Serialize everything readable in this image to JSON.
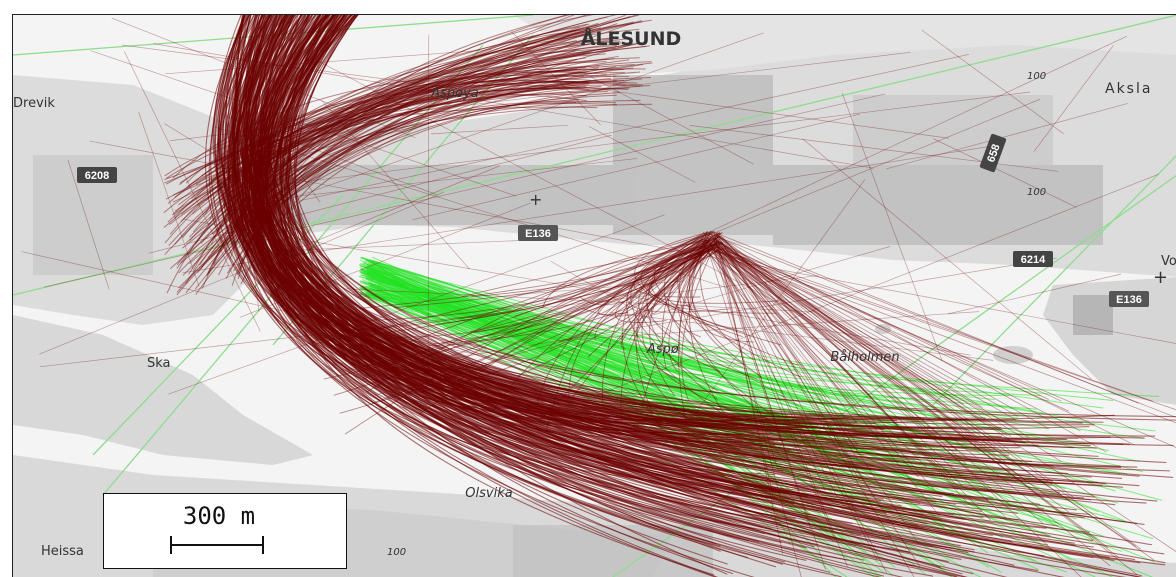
{
  "map": {
    "place_labels": {
      "alesund": "ÅLESUND",
      "drevik": "Drevik",
      "aspoya": "Aspøya",
      "aksla": "Aksla",
      "balholmen": "Bålholmen",
      "olsvika": "Olsvika",
      "heissa": "Heissa",
      "aspo": "Aspø",
      "ska": "Ska",
      "vo": "Vo"
    },
    "road_labels": {
      "r6208": "6208",
      "e136_a": "E136",
      "e136_b": "E136",
      "r6214": "6214",
      "r658": "658"
    },
    "contour_labels": [
      "100",
      "100",
      "100"
    ],
    "track_colors": {
      "dark": "#6b0000",
      "green": "#22e222",
      "contour_line": "#8fdc8f"
    }
  },
  "scale_bar": {
    "label": "300 m"
  }
}
